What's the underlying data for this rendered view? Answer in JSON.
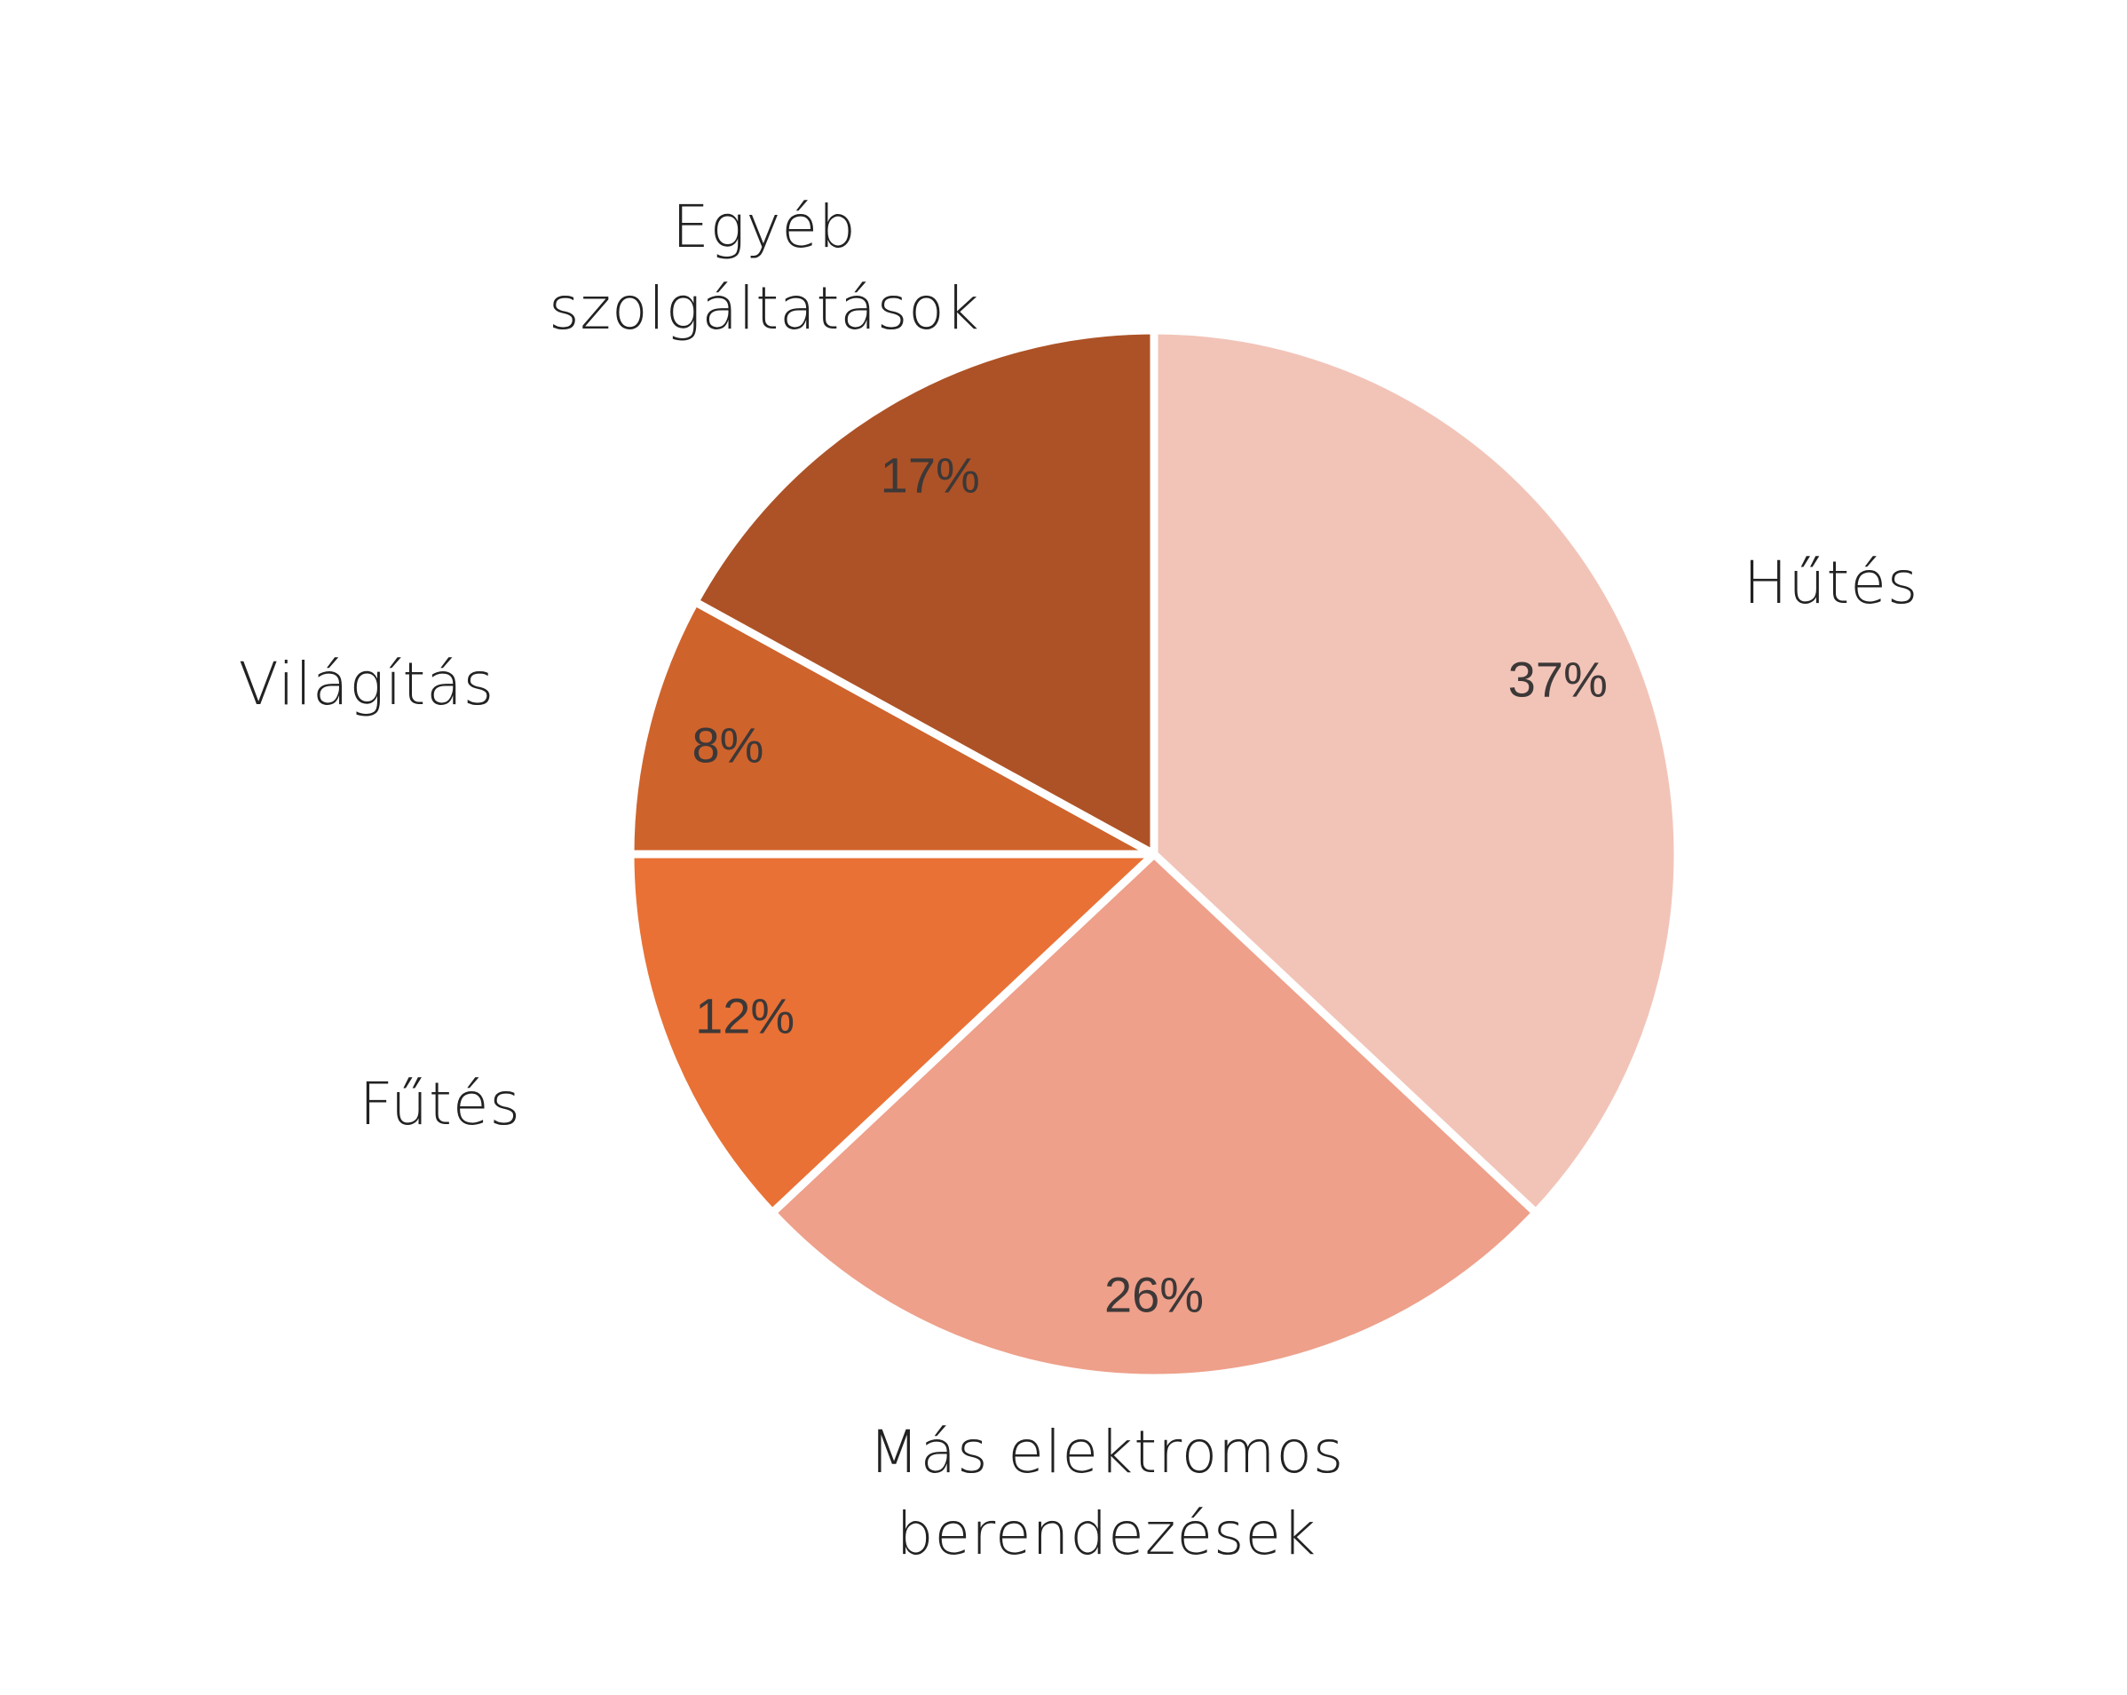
{
  "chart_data": {
    "type": "pie",
    "categories": [
      "Hűtés",
      "Más elektromos\nberendezések",
      "Fűtés",
      "Világítás",
      "Egyéb\nszolgáltatások"
    ],
    "values": [
      37,
      26,
      12,
      8,
      17
    ],
    "value_labels": [
      "37%",
      "26%",
      "12%",
      "8%",
      "17%"
    ],
    "colors": [
      "#f2c4b8",
      "#eea08a",
      "#e97135",
      "#cf632c",
      "#ad5226"
    ]
  }
}
